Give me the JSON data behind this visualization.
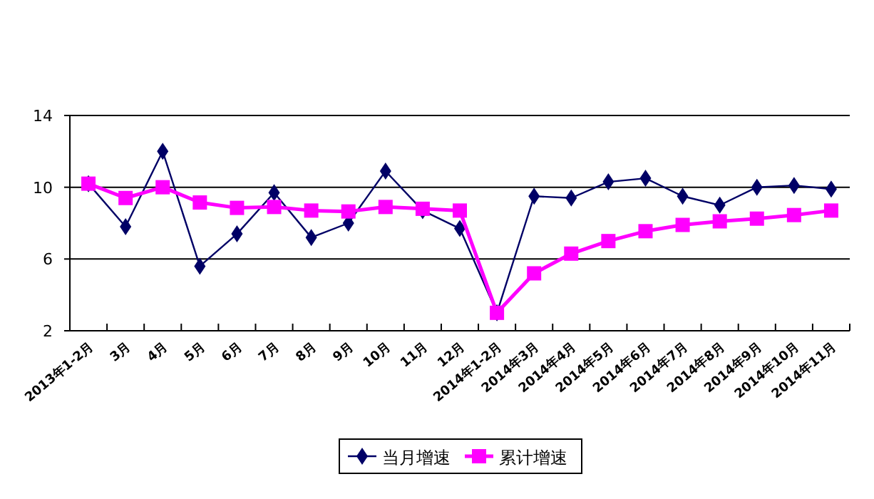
{
  "chart_data": {
    "type": "line",
    "categories": [
      "2013年1-2月",
      "3月",
      "4月",
      "5月",
      "6月",
      "7月",
      "8月",
      "9月",
      "10月",
      "11月",
      "12月",
      "2014年1-2月",
      "2014年3月",
      "2014年4月",
      "2014年5月",
      "2014年6月",
      "2014年7月",
      "2014年8月",
      "2014年9月",
      "2014年10月",
      "2014年11月"
    ],
    "series": [
      {
        "name": "当月增速",
        "color": "#000066",
        "marker": "diamond",
        "values": [
          10.2,
          7.8,
          12.0,
          5.6,
          7.4,
          9.7,
          7.2,
          8.0,
          10.9,
          8.7,
          7.7,
          3.0,
          9.5,
          9.4,
          10.3,
          10.5,
          9.5,
          9.0,
          10.0,
          10.1,
          9.9
        ]
      },
      {
        "name": "累计增速",
        "color": "#ff00ff",
        "marker": "square",
        "values": [
          10.2,
          9.4,
          10.0,
          9.15,
          8.85,
          8.9,
          8.7,
          8.65,
          8.9,
          8.8,
          8.7,
          3.0,
          5.2,
          6.3,
          7.0,
          7.55,
          7.9,
          8.1,
          8.25,
          8.45,
          8.7
        ]
      }
    ],
    "ylim": [
      2,
      14
    ],
    "yticks": [
      2,
      6,
      10,
      14
    ],
    "grid": "y",
    "legend": "bottom",
    "line_style": "solid"
  }
}
